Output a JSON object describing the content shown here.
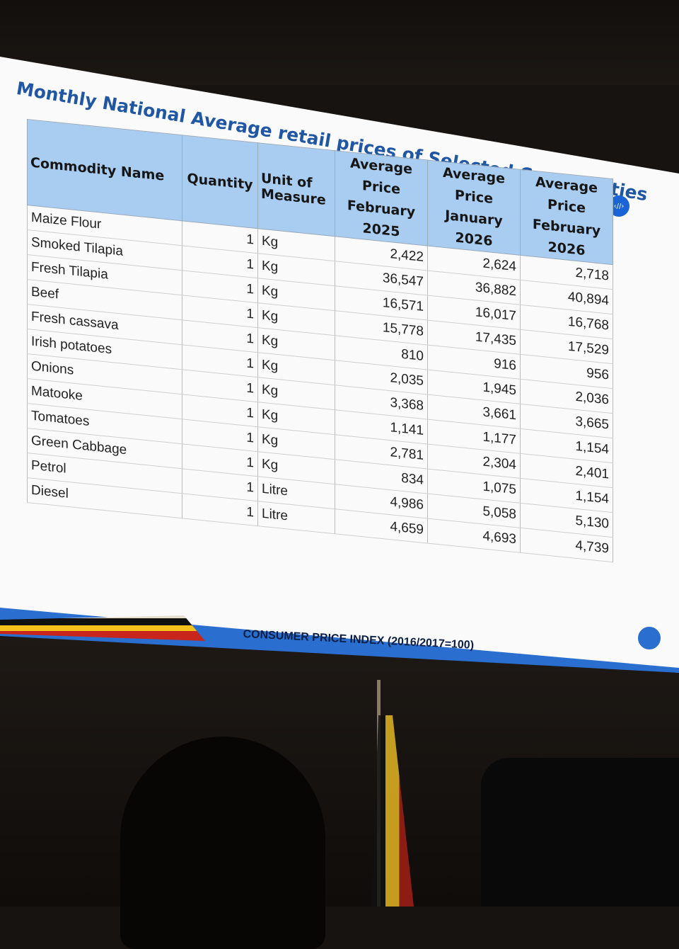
{
  "slide": {
    "title": "Monthly National Average retail prices of Selected Commodities",
    "footer": "CONSUMER PRICE INDEX (2016/2017=100)",
    "nav_badge": "‹//›"
  },
  "table": {
    "headers": {
      "name": "Commodity Name",
      "qty": "Quantity",
      "uom_1": "Unit of",
      "uom_2": "Measure",
      "feb25": [
        "Average",
        "Price",
        "February",
        "2025"
      ],
      "jan26": [
        "Average",
        "Price",
        "January",
        "2026"
      ],
      "feb26": [
        "Average",
        "Price",
        "February",
        "2026"
      ]
    },
    "rows": [
      {
        "name": "Maize Flour",
        "qty": "1",
        "unit": "Kg",
        "feb25": "2,422",
        "jan26": "2,624",
        "feb26": "2,718"
      },
      {
        "name": "Smoked Tilapia",
        "qty": "1",
        "unit": "Kg",
        "feb25": "36,547",
        "jan26": "36,882",
        "feb26": "40,894"
      },
      {
        "name": "Fresh Tilapia",
        "qty": "1",
        "unit": "Kg",
        "feb25": "16,571",
        "jan26": "16,017",
        "feb26": "16,768"
      },
      {
        "name": "Beef",
        "qty": "1",
        "unit": "Kg",
        "feb25": "15,778",
        "jan26": "17,435",
        "feb26": "17,529"
      },
      {
        "name": "Fresh cassava",
        "qty": "1",
        "unit": "Kg",
        "feb25": "810",
        "jan26": "916",
        "feb26": "956"
      },
      {
        "name": "Irish potatoes",
        "qty": "1",
        "unit": "Kg",
        "feb25": "2,035",
        "jan26": "1,945",
        "feb26": "2,036"
      },
      {
        "name": "Onions",
        "qty": "1",
        "unit": "Kg",
        "feb25": "3,368",
        "jan26": "3,661",
        "feb26": "3,665"
      },
      {
        "name": "Matooke",
        "qty": "1",
        "unit": "Kg",
        "feb25": "1,141",
        "jan26": "1,177",
        "feb26": "1,154"
      },
      {
        "name": "Tomatoes",
        "qty": "1",
        "unit": "Kg",
        "feb25": "2,781",
        "jan26": "2,304",
        "feb26": "2,401"
      },
      {
        "name": "Green Cabbage",
        "qty": "1",
        "unit": "Kg",
        "feb25": "834",
        "jan26": "1,075",
        "feb26": "1,154"
      },
      {
        "name": "Petrol",
        "qty": "1",
        "unit": "Litre",
        "feb25": "4,986",
        "jan26": "5,058",
        "feb26": "5,130"
      },
      {
        "name": "Diesel",
        "qty": "1",
        "unit": "Litre",
        "feb25": "4,659",
        "jan26": "4,693",
        "feb26": "4,739"
      }
    ]
  }
}
